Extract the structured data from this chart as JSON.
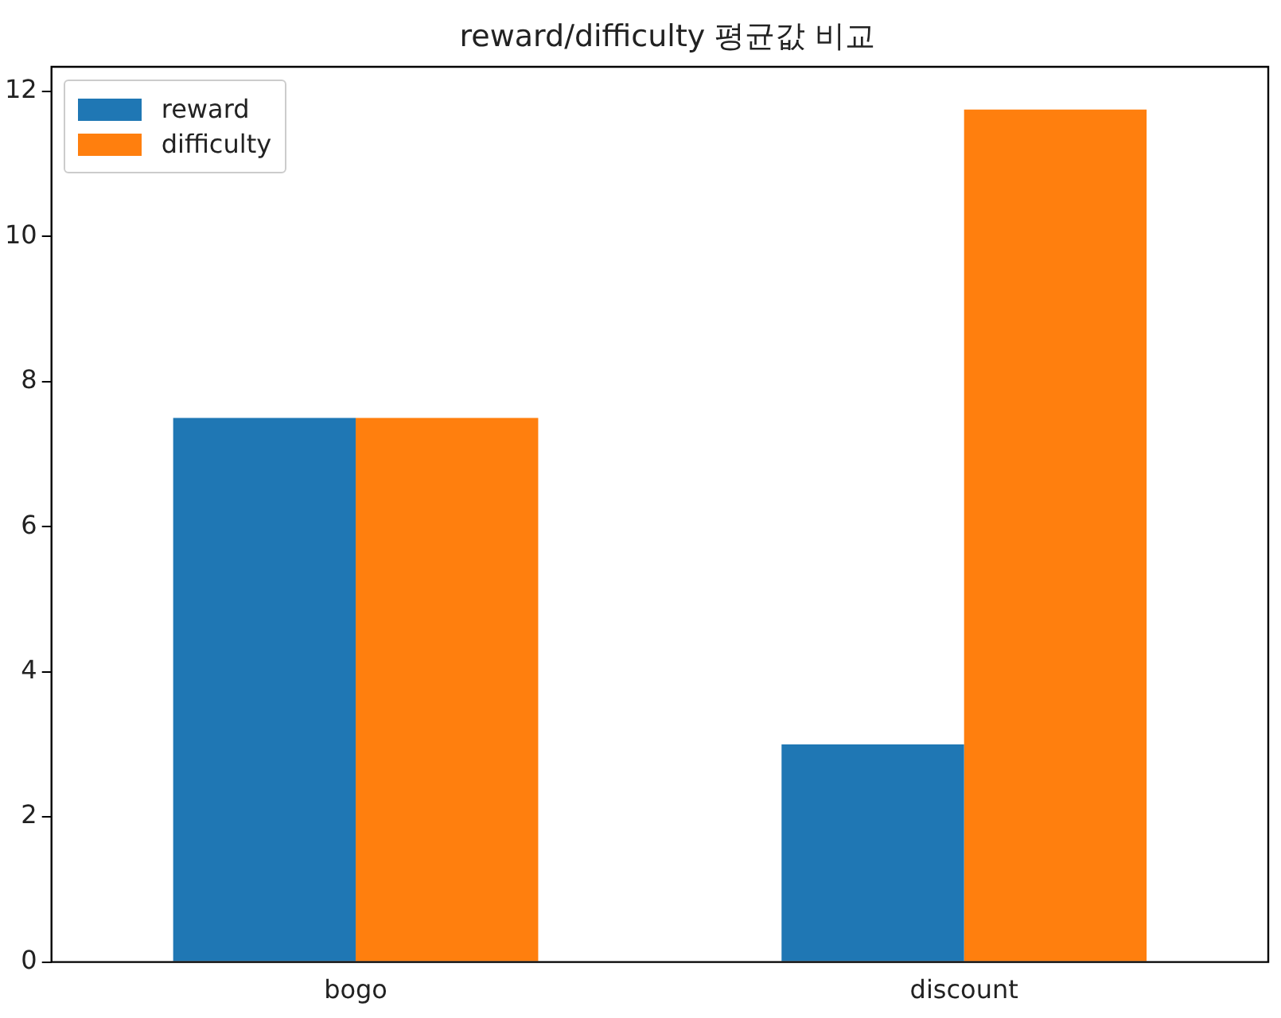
{
  "chart_data": {
    "type": "bar",
    "title": "reward/difficulty 평균값 비교",
    "categories": [
      "bogo",
      "discount"
    ],
    "series": [
      {
        "name": "reward",
        "color": "#1f77b4",
        "values": [
          7.5,
          3
        ]
      },
      {
        "name": "difficulty",
        "color": "#ff7f0e",
        "values": [
          7.5,
          11.75
        ]
      }
    ],
    "ylim": [
      0,
      12.34
    ],
    "yticks": [
      0,
      2,
      4,
      6,
      8,
      10,
      12
    ],
    "grid": false,
    "legend": "top left"
  }
}
